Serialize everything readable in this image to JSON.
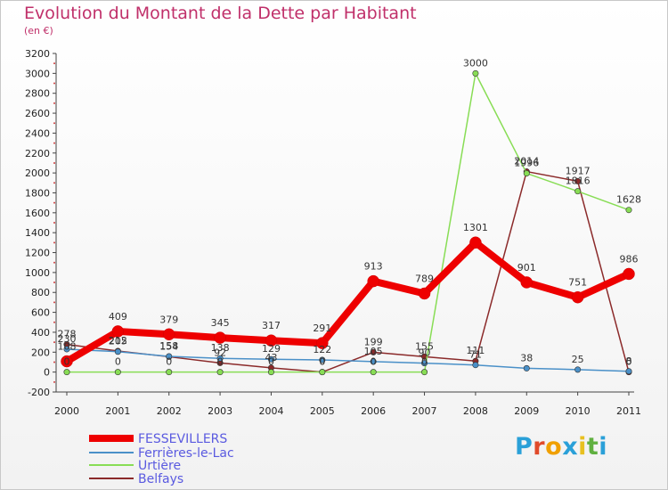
{
  "page": {
    "title": "Evolution du Montant de la Dette par Habitant",
    "subtitle": "(en €)"
  },
  "logo": {
    "text": "Proxiti",
    "colors": [
      "#2aa0d8",
      "#e04a2a",
      "#f0a000",
      "#2aa0d8",
      "#e8c020",
      "#60b040",
      "#2aa0d8"
    ]
  },
  "chart_data": {
    "type": "line",
    "title": "Evolution du Montant de la Dette par Habitant",
    "subtitle": "(en €)",
    "x": [
      "2000",
      "2001",
      "2002",
      "2003",
      "2004",
      "2005",
      "2006",
      "2007",
      "2008",
      "2009",
      "2010",
      "2011"
    ],
    "ylim": [
      -200,
      3200
    ],
    "yticks": [
      -200,
      0,
      200,
      400,
      600,
      800,
      1000,
      1200,
      1400,
      1600,
      1800,
      2000,
      2200,
      2400,
      2600,
      2800,
      3000,
      3200
    ],
    "grid": false,
    "legend_position": "bottom-left",
    "series": [
      {
        "name": "FESSEVILLERS",
        "color": "#ee0000",
        "values": [
          108,
          409,
          379,
          345,
          317,
          291,
          913,
          789,
          1301,
          901,
          751,
          986
        ],
        "labels": [
          "108",
          "409",
          "379",
          "345",
          "317",
          "291",
          "913",
          "789",
          "1301",
          "901",
          "751",
          "986"
        ]
      },
      {
        "name": "Ferrières-le-Lac",
        "color": "#4a90c8",
        "values": [
          230,
          205,
          158,
          138,
          129,
          122,
          105,
          90,
          71,
          38,
          25,
          8
        ],
        "labels": [
          "230",
          "205",
          "158",
          "138",
          "129",
          "122",
          "105",
          "90",
          "71",
          "38",
          "25",
          "8"
        ]
      },
      {
        "name": "Urtière",
        "color": "#88dd55",
        "values": [
          0,
          0,
          0,
          0,
          0,
          0,
          0,
          0,
          3000,
          1996,
          1816,
          1628
        ],
        "labels": [
          "0",
          "0",
          "0",
          "0",
          "0",
          "0",
          "0",
          "0",
          "3000",
          "1996",
          "1816",
          "1628"
        ]
      },
      {
        "name": "Belfays",
        "color": "#8b2a2a",
        "values": [
          278,
          212,
          154,
          92,
          43,
          0,
          199,
          155,
          111,
          2014,
          1917,
          0
        ],
        "labels": [
          "278",
          "212",
          "154",
          "92",
          "43",
          "0",
          "199",
          "155",
          "111",
          "2014",
          "1917",
          "0"
        ]
      }
    ]
  }
}
